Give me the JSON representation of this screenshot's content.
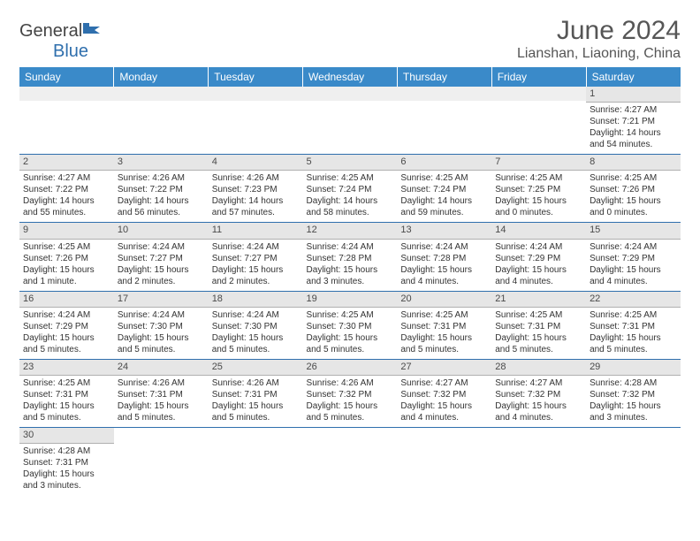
{
  "logo": {
    "general": "General",
    "blue": "Blue"
  },
  "title": "June 2024",
  "location": "Lianshan, Liaoning, China",
  "colors": {
    "header_bg": "#3a8ac9",
    "header_text": "#ffffff",
    "daynum_bg": "#e6e6e6",
    "cell_border": "#2f6fad",
    "logo_blue": "#2f6fad",
    "text": "#333333",
    "title_text": "#565656"
  },
  "layout": {
    "type": "calendar",
    "cols": 7,
    "rows": 6
  },
  "weekdays": [
    "Sunday",
    "Monday",
    "Tuesday",
    "Wednesday",
    "Thursday",
    "Friday",
    "Saturday"
  ],
  "days": [
    {
      "n": 1,
      "sr": "4:27 AM",
      "ss": "7:21 PM",
      "dl": "14 hours and 54 minutes."
    },
    {
      "n": 2,
      "sr": "4:27 AM",
      "ss": "7:22 PM",
      "dl": "14 hours and 55 minutes."
    },
    {
      "n": 3,
      "sr": "4:26 AM",
      "ss": "7:22 PM",
      "dl": "14 hours and 56 minutes."
    },
    {
      "n": 4,
      "sr": "4:26 AM",
      "ss": "7:23 PM",
      "dl": "14 hours and 57 minutes."
    },
    {
      "n": 5,
      "sr": "4:25 AM",
      "ss": "7:24 PM",
      "dl": "14 hours and 58 minutes."
    },
    {
      "n": 6,
      "sr": "4:25 AM",
      "ss": "7:24 PM",
      "dl": "14 hours and 59 minutes."
    },
    {
      "n": 7,
      "sr": "4:25 AM",
      "ss": "7:25 PM",
      "dl": "15 hours and 0 minutes."
    },
    {
      "n": 8,
      "sr": "4:25 AM",
      "ss": "7:26 PM",
      "dl": "15 hours and 0 minutes."
    },
    {
      "n": 9,
      "sr": "4:25 AM",
      "ss": "7:26 PM",
      "dl": "15 hours and 1 minute."
    },
    {
      "n": 10,
      "sr": "4:24 AM",
      "ss": "7:27 PM",
      "dl": "15 hours and 2 minutes."
    },
    {
      "n": 11,
      "sr": "4:24 AM",
      "ss": "7:27 PM",
      "dl": "15 hours and 2 minutes."
    },
    {
      "n": 12,
      "sr": "4:24 AM",
      "ss": "7:28 PM",
      "dl": "15 hours and 3 minutes."
    },
    {
      "n": 13,
      "sr": "4:24 AM",
      "ss": "7:28 PM",
      "dl": "15 hours and 4 minutes."
    },
    {
      "n": 14,
      "sr": "4:24 AM",
      "ss": "7:29 PM",
      "dl": "15 hours and 4 minutes."
    },
    {
      "n": 15,
      "sr": "4:24 AM",
      "ss": "7:29 PM",
      "dl": "15 hours and 4 minutes."
    },
    {
      "n": 16,
      "sr": "4:24 AM",
      "ss": "7:29 PM",
      "dl": "15 hours and 5 minutes."
    },
    {
      "n": 17,
      "sr": "4:24 AM",
      "ss": "7:30 PM",
      "dl": "15 hours and 5 minutes."
    },
    {
      "n": 18,
      "sr": "4:24 AM",
      "ss": "7:30 PM",
      "dl": "15 hours and 5 minutes."
    },
    {
      "n": 19,
      "sr": "4:25 AM",
      "ss": "7:30 PM",
      "dl": "15 hours and 5 minutes."
    },
    {
      "n": 20,
      "sr": "4:25 AM",
      "ss": "7:31 PM",
      "dl": "15 hours and 5 minutes."
    },
    {
      "n": 21,
      "sr": "4:25 AM",
      "ss": "7:31 PM",
      "dl": "15 hours and 5 minutes."
    },
    {
      "n": 22,
      "sr": "4:25 AM",
      "ss": "7:31 PM",
      "dl": "15 hours and 5 minutes."
    },
    {
      "n": 23,
      "sr": "4:25 AM",
      "ss": "7:31 PM",
      "dl": "15 hours and 5 minutes."
    },
    {
      "n": 24,
      "sr": "4:26 AM",
      "ss": "7:31 PM",
      "dl": "15 hours and 5 minutes."
    },
    {
      "n": 25,
      "sr": "4:26 AM",
      "ss": "7:31 PM",
      "dl": "15 hours and 5 minutes."
    },
    {
      "n": 26,
      "sr": "4:26 AM",
      "ss": "7:32 PM",
      "dl": "15 hours and 5 minutes."
    },
    {
      "n": 27,
      "sr": "4:27 AM",
      "ss": "7:32 PM",
      "dl": "15 hours and 4 minutes."
    },
    {
      "n": 28,
      "sr": "4:27 AM",
      "ss": "7:32 PM",
      "dl": "15 hours and 4 minutes."
    },
    {
      "n": 29,
      "sr": "4:28 AM",
      "ss": "7:32 PM",
      "dl": "15 hours and 3 minutes."
    },
    {
      "n": 30,
      "sr": "4:28 AM",
      "ss": "7:31 PM",
      "dl": "15 hours and 3 minutes."
    }
  ],
  "first_weekday_index": 6,
  "labels": {
    "sunrise": "Sunrise:",
    "sunset": "Sunset:",
    "daylight": "Daylight:"
  }
}
